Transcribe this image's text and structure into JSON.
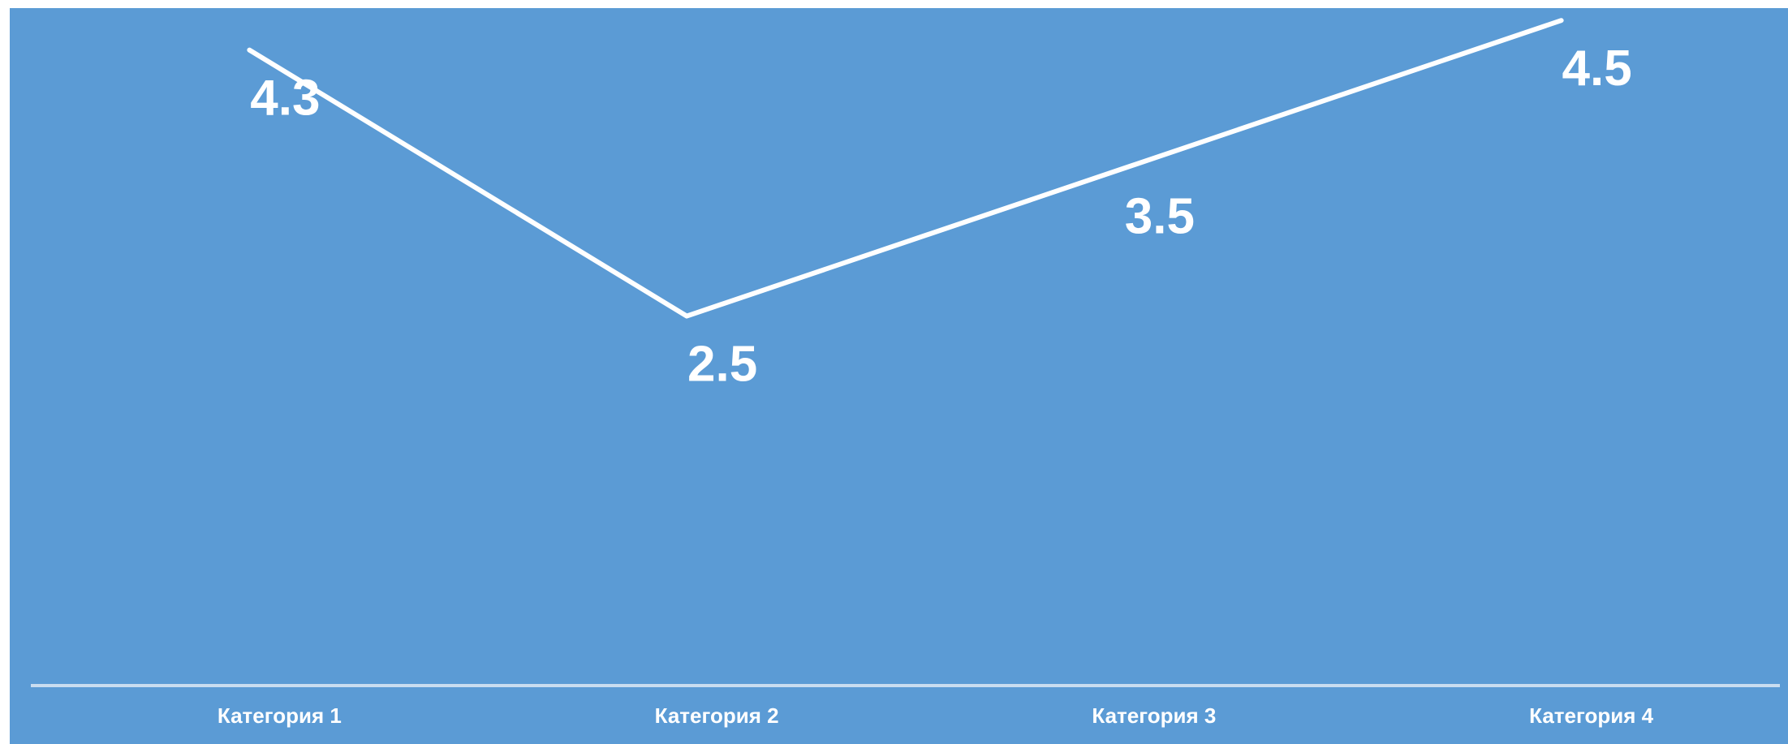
{
  "chart_data": {
    "type": "line",
    "categories": [
      "Категория 1",
      "Категория 2",
      "Категория 3",
      "Категория 4"
    ],
    "series": [
      {
        "values": [
          4.3,
          2.5,
          3.5,
          4.5
        ]
      }
    ],
    "data_labels": [
      "4.3",
      "2.5",
      "3.5",
      "4.5"
    ],
    "ylim": [
      0,
      4.6
    ],
    "grid": false,
    "legend": "none",
    "colors": {
      "background": "#5b9bd5",
      "line": "#ffffff",
      "axis": "#c9ddf0",
      "text": "#ffffff"
    }
  }
}
